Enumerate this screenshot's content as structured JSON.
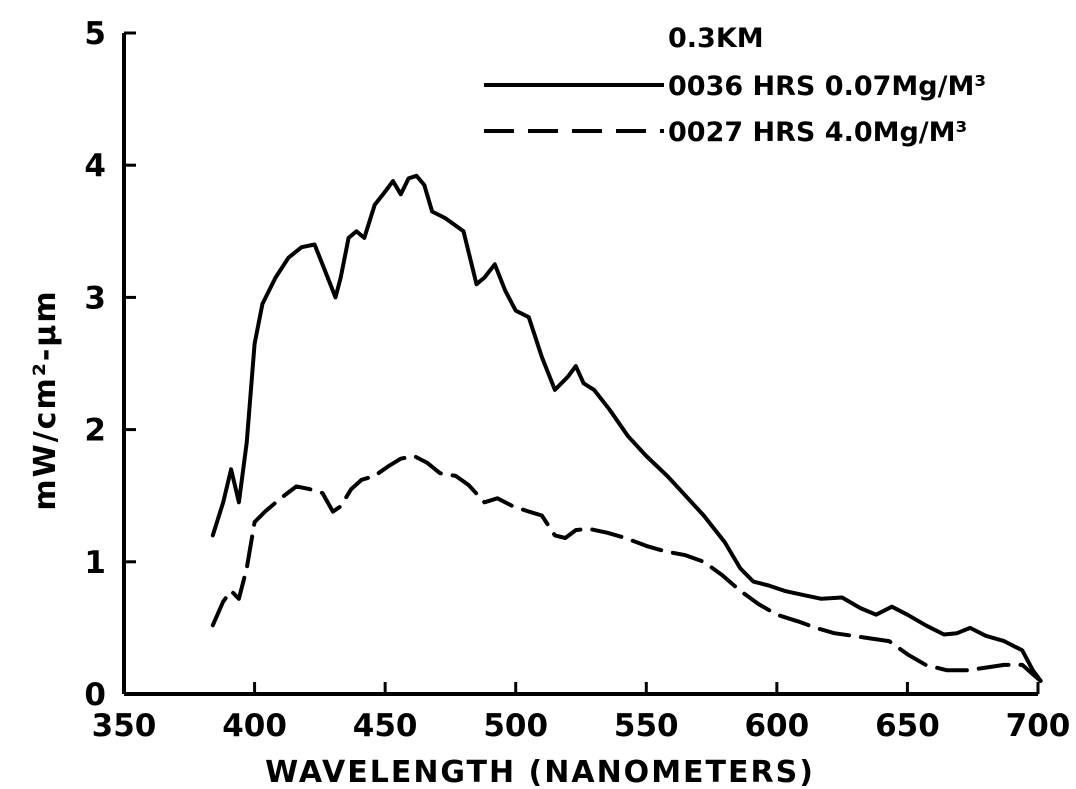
{
  "chart_data": {
    "type": "line",
    "title": "",
    "xlabel": "WAVELENGTH (NANOMETERS)",
    "ylabel": "mW/cm²-μm",
    "xlim": [
      350,
      700
    ],
    "ylim": [
      0,
      5
    ],
    "x_ticks": [
      "350",
      "400",
      "450",
      "500",
      "550",
      "600",
      "650",
      "700"
    ],
    "y_ticks": [
      "0",
      "1",
      "2",
      "3",
      "4",
      "5"
    ],
    "legend": {
      "heading": "0.3KM",
      "placement": "top-right"
    },
    "series": [
      {
        "name": "0036 HRS 0.07Mg/M³",
        "style": "solid",
        "x": [
          384,
          388,
          391,
          394,
          397,
          400,
          403,
          408,
          413,
          418,
          423,
          427,
          431,
          433,
          436,
          439,
          442,
          446,
          450,
          453,
          456,
          459,
          462,
          465,
          468,
          473,
          480,
          485,
          488,
          492,
          496,
          500,
          505,
          510,
          515,
          520,
          523,
          526,
          530,
          536,
          543,
          550,
          558,
          565,
          572,
          580,
          586,
          591,
          597,
          603,
          610,
          617,
          625,
          632,
          638,
          644,
          650,
          657,
          664,
          669,
          674,
          680,
          687,
          694,
          698,
          701
        ],
        "y": [
          1.2,
          1.45,
          1.7,
          1.45,
          1.9,
          2.65,
          2.95,
          3.15,
          3.3,
          3.38,
          3.4,
          3.2,
          3.0,
          3.15,
          3.45,
          3.5,
          3.45,
          3.7,
          3.8,
          3.88,
          3.78,
          3.9,
          3.92,
          3.85,
          3.65,
          3.6,
          3.5,
          3.1,
          3.15,
          3.25,
          3.05,
          2.9,
          2.85,
          2.55,
          2.3,
          2.4,
          2.48,
          2.35,
          2.3,
          2.15,
          1.95,
          1.8,
          1.65,
          1.5,
          1.35,
          1.15,
          0.95,
          0.85,
          0.82,
          0.78,
          0.75,
          0.72,
          0.73,
          0.65,
          0.6,
          0.66,
          0.6,
          0.52,
          0.45,
          0.46,
          0.5,
          0.44,
          0.4,
          0.33,
          0.18,
          0.1
        ]
      },
      {
        "name": "0027 HRS 4.0Mg/M³",
        "style": "dashed",
        "x": [
          384,
          388,
          391,
          394,
          397,
          400,
          404,
          410,
          416,
          421,
          426,
          430,
          433,
          437,
          441,
          446,
          451,
          456,
          461,
          466,
          471,
          477,
          482,
          488,
          493,
          499,
          505,
          510,
          515,
          519,
          523,
          528,
          535,
          542,
          550,
          557,
          565,
          572,
          579,
          586,
          593,
          600,
          608,
          615,
          622,
          629,
          636,
          643,
          650,
          657,
          665,
          673,
          680,
          687,
          694,
          698,
          701
        ],
        "y": [
          0.52,
          0.7,
          0.78,
          0.72,
          0.95,
          1.3,
          1.38,
          1.48,
          1.57,
          1.55,
          1.52,
          1.38,
          1.42,
          1.55,
          1.62,
          1.65,
          1.72,
          1.78,
          1.8,
          1.75,
          1.67,
          1.65,
          1.58,
          1.45,
          1.48,
          1.42,
          1.38,
          1.35,
          1.2,
          1.18,
          1.24,
          1.25,
          1.22,
          1.18,
          1.12,
          1.08,
          1.05,
          1.0,
          0.9,
          0.78,
          0.68,
          0.6,
          0.55,
          0.5,
          0.46,
          0.44,
          0.42,
          0.4,
          0.3,
          0.22,
          0.18,
          0.18,
          0.2,
          0.22,
          0.22,
          0.15,
          0.1
        ]
      }
    ]
  }
}
